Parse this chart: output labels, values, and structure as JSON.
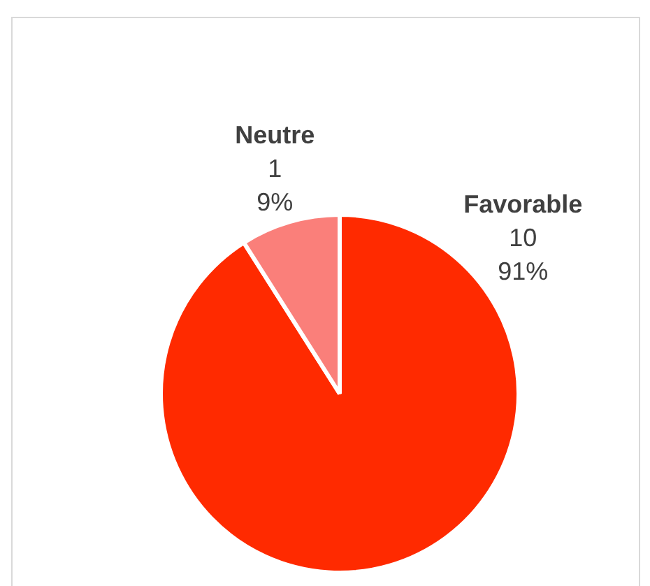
{
  "chart_data": {
    "type": "pie",
    "categories": [
      "Favorable",
      "Neutre"
    ],
    "values": [
      91,
      9
    ],
    "colors": [
      "#ff2a00",
      "#fa7f7a"
    ],
    "value_labels": [
      "10\n91%",
      "1\n9%"
    ],
    "legend": false
  }
}
